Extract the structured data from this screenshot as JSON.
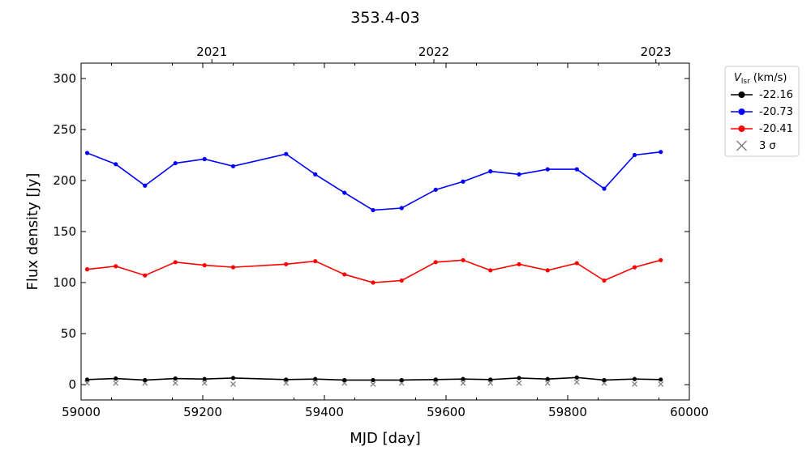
{
  "chart_data": {
    "type": "line",
    "title": "353.4-03",
    "xlabel": "MJD [day]",
    "ylabel": "Flux density [Jy]",
    "xlim": [
      59000,
      60000
    ],
    "ylim": [
      -15,
      315
    ],
    "xticks": [
      59000,
      59200,
      59400,
      59600,
      59800,
      60000
    ],
    "yticks": [
      0,
      50,
      100,
      150,
      200,
      250,
      300
    ],
    "top_axis": {
      "ticks": [
        {
          "label": "2021",
          "mjd": 59215
        },
        {
          "label": "2022",
          "mjd": 59580
        },
        {
          "label": "2023",
          "mjd": 59945
        }
      ]
    },
    "grid": false,
    "legend": {
      "title_main": "V",
      "title_sub": "lsr",
      "title_units": " (km/s)",
      "placement": "outside-right",
      "entries": [
        "-22.16",
        "-20.73",
        "-20.41",
        "3 σ"
      ]
    },
    "x": [
      59010,
      59057,
      59105,
      59155,
      59203,
      59250,
      59337,
      59385,
      59433,
      59480,
      59527,
      59583,
      59628,
      59673,
      59720,
      59767,
      59815,
      59860,
      59910,
      59953
    ],
    "series": [
      {
        "name": "-22.16",
        "color": "#000000",
        "values": [
          5,
          6,
          4.5,
          6,
          5.5,
          6.5,
          5,
          5.5,
          4.5,
          4.5,
          4.5,
          5,
          5.5,
          5,
          6.5,
          5.5,
          7,
          4.5,
          5.5,
          5
        ]
      },
      {
        "name": "-20.73",
        "color": "#0000ff",
        "values": [
          227,
          216,
          195,
          217,
          221,
          214,
          226,
          206,
          188,
          171,
          173,
          191,
          199,
          209,
          206,
          211,
          211,
          192,
          225,
          228
        ]
      },
      {
        "name": "-20.41",
        "color": "#ff0000",
        "values": [
          113,
          116,
          107,
          120,
          117,
          115,
          118,
          121,
          108,
          100,
          102,
          120,
          122,
          112,
          118,
          112,
          119,
          102,
          115,
          122
        ]
      }
    ],
    "sigma3": {
      "name": "3 σ",
      "color": "#808080",
      "values": [
        1.5,
        1.5,
        1.5,
        1.5,
        1.5,
        0.5,
        1.5,
        1.5,
        1.5,
        0.5,
        1.5,
        1.5,
        1.5,
        1.5,
        1.5,
        1.5,
        2.5,
        1.5,
        0.5,
        0.5
      ]
    }
  }
}
